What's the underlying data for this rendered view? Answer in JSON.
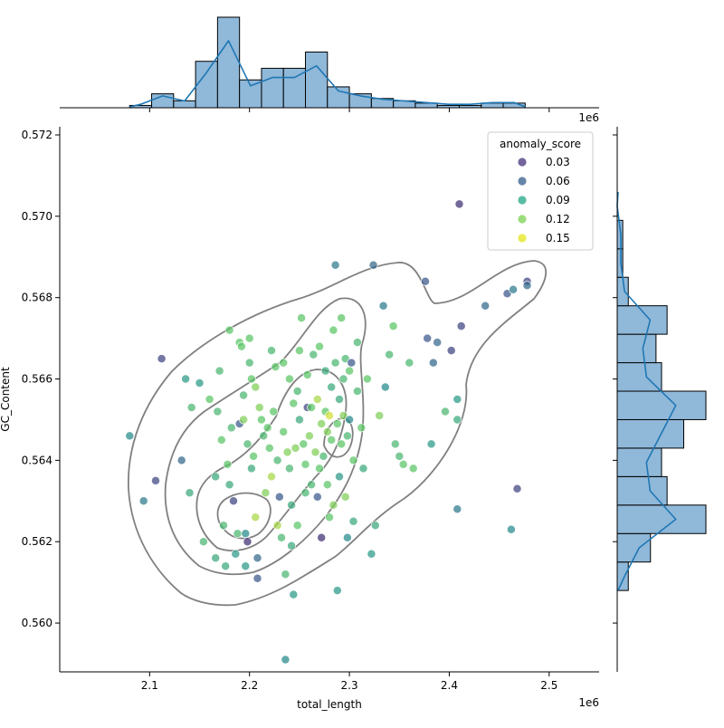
{
  "chart_data": {
    "type": "scatter",
    "title": "",
    "xlabel": "total_length",
    "ylabel": "GC_Content",
    "x_offset_label": "1e6",
    "xlim": [
      2.01,
      2.55
    ],
    "ylim": [
      0.5588,
      0.5722
    ],
    "x_ticks": [
      2.1,
      2.2,
      2.3,
      2.4,
      2.5
    ],
    "x_tick_labels": [
      "2.1",
      "2.2",
      "2.3",
      "2.4",
      "2.5"
    ],
    "y_ticks": [
      0.56,
      0.562,
      0.564,
      0.566,
      0.568,
      0.57,
      0.572
    ],
    "y_tick_labels": [
      "0.560",
      "0.562",
      "0.564",
      "0.566",
      "0.568",
      "0.570",
      "0.572"
    ],
    "grid": false,
    "legend": {
      "title": "anomaly_score",
      "placement": "top-right",
      "entries": [
        {
          "label": "0.03",
          "color": "#46327e"
        },
        {
          "label": "0.06",
          "color": "#365c8d"
        },
        {
          "label": "0.09",
          "color": "#21a585"
        },
        {
          "label": "0.12",
          "color": "#7ad151"
        },
        {
          "label": "0.15",
          "color": "#e4e419"
        }
      ]
    },
    "series": [
      {
        "points": [
          [
            2.08,
            0.5646,
            0.08
          ],
          [
            2.094,
            0.563,
            0.07
          ],
          [
            2.106,
            0.5635,
            0.04
          ],
          [
            2.112,
            0.5665,
            0.04
          ],
          [
            2.132,
            0.564,
            0.06
          ],
          [
            2.136,
            0.566,
            0.09
          ],
          [
            2.14,
            0.5632,
            0.1
          ],
          [
            2.142,
            0.5653,
            0.11
          ],
          [
            2.15,
            0.5659,
            0.09
          ],
          [
            2.154,
            0.562,
            0.11
          ],
          [
            2.16,
            0.5655,
            0.12
          ],
          [
            2.166,
            0.5636,
            0.1
          ],
          [
            2.166,
            0.5616,
            0.1
          ],
          [
            2.168,
            0.5652,
            0.11
          ],
          [
            2.17,
            0.5662,
            0.11
          ],
          [
            2.172,
            0.5645,
            0.12
          ],
          [
            2.174,
            0.5624,
            0.11
          ],
          [
            2.176,
            0.5614,
            0.1
          ],
          [
            2.178,
            0.5639,
            0.12
          ],
          [
            2.18,
            0.5672,
            0.12
          ],
          [
            2.18,
            0.5634,
            0.1
          ],
          [
            2.182,
            0.5648,
            0.11
          ],
          [
            2.184,
            0.563,
            0.04
          ],
          [
            2.186,
            0.5617,
            0.09
          ],
          [
            2.188,
            0.5622,
            0.11
          ],
          [
            2.19,
            0.5669,
            0.12
          ],
          [
            2.19,
            0.5649,
            0.05
          ],
          [
            2.192,
            0.5668,
            0.12
          ],
          [
            2.194,
            0.565,
            0.13
          ],
          [
            2.194,
            0.5656,
            0.11
          ],
          [
            2.196,
            0.5622,
            0.08
          ],
          [
            2.196,
            0.5614,
            0.09
          ],
          [
            2.198,
            0.5644,
            0.11
          ],
          [
            2.198,
            0.562,
            0.03
          ],
          [
            2.2,
            0.567,
            0.12
          ],
          [
            2.2,
            0.5664,
            0.11
          ],
          [
            2.202,
            0.566,
            0.12
          ],
          [
            2.202,
            0.5638,
            0.1
          ],
          [
            2.204,
            0.5641,
            0.12
          ],
          [
            2.206,
            0.5658,
            0.13
          ],
          [
            2.206,
            0.5626,
            0.14
          ],
          [
            2.208,
            0.5616,
            0.06
          ],
          [
            2.208,
            0.5611,
            0.05
          ],
          [
            2.21,
            0.5653,
            0.13
          ],
          [
            2.212,
            0.565,
            0.12
          ],
          [
            2.214,
            0.5646,
            0.11
          ],
          [
            2.216,
            0.5632,
            0.13
          ],
          [
            2.218,
            0.5648,
            0.12
          ],
          [
            2.22,
            0.5643,
            0.12
          ],
          [
            2.222,
            0.5667,
            0.11
          ],
          [
            2.222,
            0.5636,
            0.14
          ],
          [
            2.224,
            0.5652,
            0.12
          ],
          [
            2.226,
            0.5663,
            0.12
          ],
          [
            2.228,
            0.564,
            0.11
          ],
          [
            2.228,
            0.5624,
            0.14
          ],
          [
            2.23,
            0.5631,
            0.05
          ],
          [
            2.232,
            0.5621,
            0.11
          ],
          [
            2.234,
            0.5664,
            0.12
          ],
          [
            2.234,
            0.5647,
            0.12
          ],
          [
            2.236,
            0.5591,
            0.08
          ],
          [
            2.236,
            0.5612,
            0.11
          ],
          [
            2.238,
            0.5642,
            0.13
          ],
          [
            2.24,
            0.566,
            0.12
          ],
          [
            2.24,
            0.5638,
            0.11
          ],
          [
            2.242,
            0.5629,
            0.1
          ],
          [
            2.242,
            0.5619,
            0.1
          ],
          [
            2.244,
            0.5654,
            0.12
          ],
          [
            2.244,
            0.5607,
            0.09
          ],
          [
            2.246,
            0.5643,
            0.13
          ],
          [
            2.248,
            0.5657,
            0.11
          ],
          [
            2.248,
            0.5624,
            0.12
          ],
          [
            2.25,
            0.565,
            0.1
          ],
          [
            2.25,
            0.5667,
            0.12
          ],
          [
            2.252,
            0.5675,
            0.12
          ],
          [
            2.254,
            0.5644,
            0.12
          ],
          [
            2.256,
            0.5639,
            0.12
          ],
          [
            2.256,
            0.5632,
            0.11
          ],
          [
            2.258,
            0.5653,
            0.04
          ],
          [
            2.258,
            0.5661,
            0.12
          ],
          [
            2.26,
            0.5646,
            0.13
          ],
          [
            2.262,
            0.5634,
            0.11
          ],
          [
            2.262,
            0.5653,
            0.12
          ],
          [
            2.264,
            0.5666,
            0.11
          ],
          [
            2.266,
            0.5642,
            0.13
          ],
          [
            2.268,
            0.5631,
            0.05
          ],
          [
            2.268,
            0.5655,
            0.14
          ],
          [
            2.27,
            0.5638,
            0.12
          ],
          [
            2.27,
            0.5668,
            0.12
          ],
          [
            2.272,
            0.5649,
            0.13
          ],
          [
            2.272,
            0.5621,
            0.03
          ],
          [
            2.274,
            0.5641,
            0.11
          ],
          [
            2.276,
            0.5662,
            0.1
          ],
          [
            2.276,
            0.5652,
            0.12
          ],
          [
            2.278,
            0.5634,
            0.12
          ],
          [
            2.278,
            0.5647,
            0.13
          ],
          [
            2.28,
            0.5626,
            0.12
          ],
          [
            2.28,
            0.5651,
            0.15
          ],
          [
            2.282,
            0.5658,
            0.1
          ],
          [
            2.282,
            0.5645,
            0.12
          ],
          [
            2.284,
            0.5629,
            0.13
          ],
          [
            2.284,
            0.5672,
            0.12
          ],
          [
            2.286,
            0.5688,
            0.07
          ],
          [
            2.286,
            0.5664,
            0.11
          ],
          [
            2.288,
            0.5649,
            0.12
          ],
          [
            2.288,
            0.5608,
            0.09
          ],
          [
            2.29,
            0.5655,
            0.1
          ],
          [
            2.29,
            0.5636,
            0.09
          ],
          [
            2.292,
            0.5675,
            0.12
          ],
          [
            2.292,
            0.5644,
            0.12
          ],
          [
            2.294,
            0.566,
            0.11
          ],
          [
            2.294,
            0.5651,
            0.13
          ],
          [
            2.296,
            0.5631,
            0.13
          ],
          [
            2.296,
            0.5665,
            0.11
          ],
          [
            2.298,
            0.5646,
            0.11
          ],
          [
            2.298,
            0.5621,
            0.08
          ],
          [
            2.3,
            0.565,
            0.08
          ],
          [
            2.3,
            0.5662,
            0.12
          ],
          [
            2.302,
            0.5664,
            0.05
          ],
          [
            2.304,
            0.564,
            0.12
          ],
          [
            2.304,
            0.5625,
            0.1
          ],
          [
            2.308,
            0.5669,
            0.11
          ],
          [
            2.308,
            0.5657,
            0.11
          ],
          [
            2.312,
            0.5648,
            0.12
          ],
          [
            2.314,
            0.5638,
            0.1
          ],
          [
            2.318,
            0.566,
            0.12
          ],
          [
            2.322,
            0.5617,
            0.09
          ],
          [
            2.324,
            0.5688,
            0.06
          ],
          [
            2.326,
            0.5624,
            0.1
          ],
          [
            2.33,
            0.5651,
            0.13
          ],
          [
            2.334,
            0.5678,
            0.07
          ],
          [
            2.336,
            0.5658,
            0.08
          ],
          [
            2.34,
            0.5666,
            0.11
          ],
          [
            2.344,
            0.5673,
            0.12
          ],
          [
            2.346,
            0.5644,
            0.11
          ],
          [
            2.35,
            0.5641,
            0.11
          ],
          [
            2.354,
            0.5639,
            0.12
          ],
          [
            2.36,
            0.5664,
            0.11
          ],
          [
            2.364,
            0.5638,
            0.12
          ],
          [
            2.376,
            0.5684,
            0.05
          ],
          [
            2.378,
            0.567,
            0.05
          ],
          [
            2.382,
            0.5644,
            0.09
          ],
          [
            2.384,
            0.5664,
            0.06
          ],
          [
            2.388,
            0.5669,
            0.06
          ],
          [
            2.396,
            0.5652,
            0.11
          ],
          [
            2.402,
            0.5667,
            0.04
          ],
          [
            2.408,
            0.5655,
            0.09
          ],
          [
            2.408,
            0.565,
            0.1
          ],
          [
            2.408,
            0.5628,
            0.07
          ],
          [
            2.41,
            0.5703,
            0.03
          ],
          [
            2.412,
            0.5673,
            0.04
          ],
          [
            2.436,
            0.5678,
            0.06
          ],
          [
            2.458,
            0.5681,
            0.05
          ],
          [
            2.462,
            0.5623,
            0.08
          ],
          [
            2.464,
            0.5682,
            0.07
          ],
          [
            2.468,
            0.5633,
            0.04
          ],
          [
            2.478,
            0.5684,
            0.04
          ],
          [
            2.478,
            0.5683,
            0.06
          ]
        ]
      }
    ],
    "x_marginal_hist": {
      "bins": [
        2.08,
        2.102,
        2.124,
        2.146,
        2.168,
        2.19,
        2.212,
        2.234,
        2.256,
        2.278,
        2.3,
        2.322,
        2.344,
        2.366,
        2.388,
        2.41,
        2.432,
        2.454,
        2.476
      ],
      "counts": [
        1,
        6,
        3,
        20,
        39,
        12,
        17,
        17,
        24,
        9,
        6,
        4,
        3,
        2,
        1,
        1,
        2,
        2
      ]
    },
    "y_marginal_hist": {
      "bins": [
        0.5608,
        0.5615,
        0.5622,
        0.5629,
        0.5636,
        0.5643,
        0.565,
        0.5657,
        0.5664,
        0.5671,
        0.5678,
        0.5685,
        0.5692,
        0.5699,
        0.5706
      ],
      "counts": [
        2,
        6,
        16,
        9,
        8,
        12,
        16,
        8,
        7,
        9,
        2,
        1,
        1,
        0
      ]
    }
  }
}
